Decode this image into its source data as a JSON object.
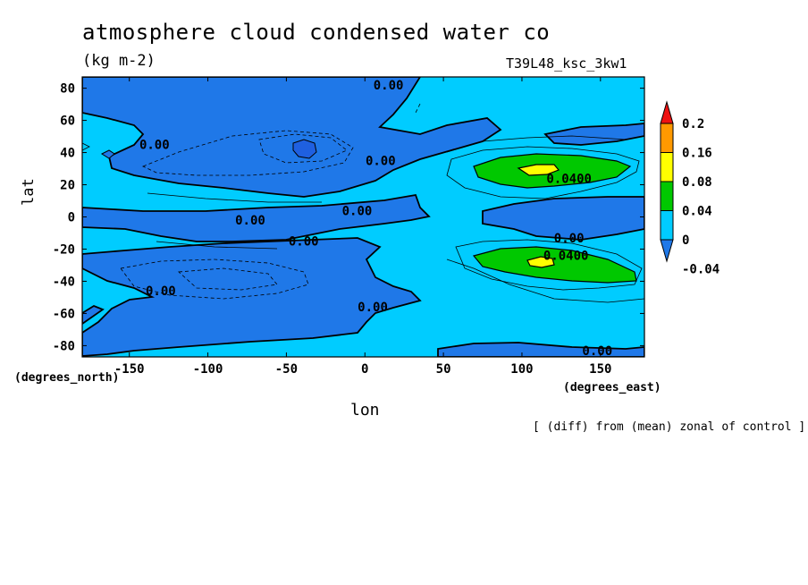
{
  "chart_data": {
    "type": "contour",
    "title": "atmosphere cloud condensed water co",
    "units": "(kg m-2)",
    "run_label": "T39L48_ksc_3kw1",
    "xlabel": "lon",
    "ylabel": "lat",
    "x_units": "(degrees_east)",
    "y_units": "(degrees_north)",
    "note": "[ (diff) from (mean) zonal of control ]",
    "xlim": [
      -180,
      178
    ],
    "ylim": [
      -87,
      87
    ],
    "x_ticks": [
      -150,
      -100,
      -50,
      0,
      50,
      100,
      150
    ],
    "y_ticks": [
      -80,
      -60,
      -40,
      -20,
      0,
      20,
      40,
      60,
      80
    ],
    "colorbar": {
      "levels": [
        "0.2",
        "0.16",
        "0.08",
        "0.04",
        "0",
        "-0.04"
      ],
      "colors": [
        "#1f78e8",
        "#00ccff",
        "#00c800",
        "#ffff00",
        "#ff9900",
        "#ee1111"
      ]
    },
    "contour_labels": [
      {
        "text": "0.00",
        "lon": 15,
        "lat": 82
      },
      {
        "text": "0.00",
        "lon": -134,
        "lat": 45
      },
      {
        "text": "0.00",
        "lon": 10,
        "lat": 35
      },
      {
        "text": "0.0400",
        "lon": 130,
        "lat": 24
      },
      {
        "text": "0.00",
        "lon": -5,
        "lat": 4
      },
      {
        "text": "0.00",
        "lon": -73,
        "lat": -2
      },
      {
        "text": "0.00",
        "lon": 130,
        "lat": -13
      },
      {
        "text": "0.00",
        "lon": -39,
        "lat": -15
      },
      {
        "text": "0.0400",
        "lon": 128,
        "lat": -24
      },
      {
        "text": "0.00",
        "lon": -130,
        "lat": -46
      },
      {
        "text": "0.00",
        "lon": 5,
        "lat": -56
      },
      {
        "text": "0.00",
        "lon": 148,
        "lat": -83
      }
    ]
  }
}
